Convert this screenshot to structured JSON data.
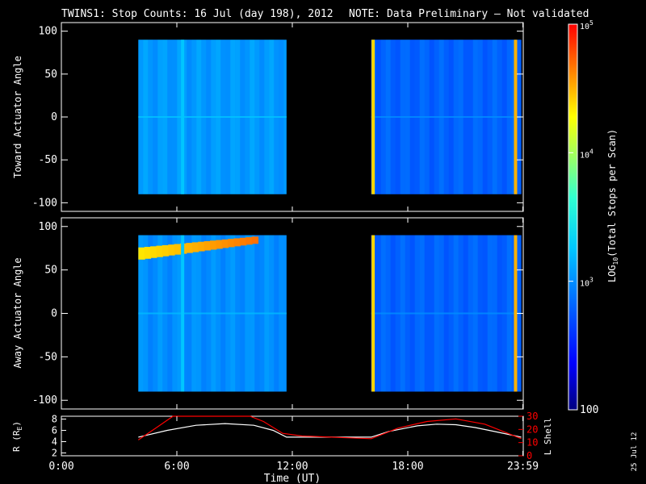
{
  "title": {
    "main": "TWINS1: Stop Counts: 16 Jul (day 198), 2012",
    "note": "NOTE: Data Preliminary – Not validated",
    "note_color": "#ff0000"
  },
  "side_date": "25 Jul 12",
  "chart_data": [
    {
      "type": "heatmap",
      "ylabel": "Toward Actuator Angle",
      "ylim": [
        -110,
        110
      ],
      "yticks": [
        100,
        50,
        0,
        -50,
        -100
      ],
      "xlim": [
        0,
        24
      ],
      "data_blocks": [
        {
          "x_start": 4.0,
          "x_end": 11.7,
          "y_start": -90,
          "y_end": 90,
          "log10_level": 3.05
        },
        {
          "x_start": 16.1,
          "x_end": 23.9,
          "y_start": -90,
          "y_end": 90,
          "log10_level": 2.8
        }
      ],
      "features": [
        {
          "x": 6.3,
          "kind": "vertical stripe",
          "log10_level": 3.25
        },
        {
          "x": 16.2,
          "kind": "vertical stripe",
          "log10_level": 4.4
        },
        {
          "x": 23.6,
          "kind": "vertical stripe",
          "log10_level": 4.5
        }
      ]
    },
    {
      "type": "heatmap",
      "ylabel": "Away Actuator Angle",
      "ylim": [
        -110,
        110
      ],
      "yticks": [
        100,
        50,
        0,
        -50,
        -100
      ],
      "xlim": [
        0,
        24
      ],
      "data_blocks": [
        {
          "x_start": 4.0,
          "x_end": 11.7,
          "y_start": -90,
          "y_end": 90,
          "log10_level": 3.0
        },
        {
          "x_start": 16.1,
          "x_end": 23.9,
          "y_start": -90,
          "y_end": 90,
          "log10_level": 2.8
        }
      ],
      "features": [
        {
          "kind": "enhancement band",
          "x_start": 4.0,
          "x_end": 10.2,
          "y_start": 62,
          "y_end": 85,
          "log10_level": 4.6
        },
        {
          "x": 6.3,
          "kind": "vertical stripe",
          "log10_level": 3.25
        },
        {
          "x": 16.2,
          "kind": "vertical stripe",
          "log10_level": 4.4
        },
        {
          "x": 23.6,
          "kind": "vertical stripe",
          "log10_level": 4.5
        }
      ]
    },
    {
      "type": "line",
      "ylabel": "R (R",
      "ylabel_sub": "E",
      "ylabel_end": ")",
      "ylabel2": "L Shell",
      "ylim": [
        1.5,
        8.5
      ],
      "yticks": [
        8,
        6,
        4,
        2
      ],
      "ylim2": [
        0,
        30
      ],
      "yticks2": [
        30,
        20,
        10,
        0
      ],
      "x_ticks": [
        "0:00",
        "6:00",
        "12:00",
        "18:00",
        "23:59"
      ],
      "x_tick_values": [
        0,
        6,
        12,
        18,
        23.98
      ],
      "xlabel": "Time (UT)",
      "series": [
        {
          "color": "#ffffff",
          "axis": "left",
          "x": [
            4.0,
            5.5,
            7.0,
            8.5,
            10.0,
            11.0,
            11.7,
            12.5,
            14.0,
            16.1,
            17.0,
            18.5,
            19.5,
            20.5,
            21.5,
            22.5,
            23.9
          ],
          "y": [
            4.8,
            6.0,
            6.9,
            7.2,
            6.9,
            6.0,
            4.8,
            4.8,
            4.8,
            4.8,
            5.8,
            6.8,
            7.1,
            7.0,
            6.5,
            5.8,
            4.8
          ]
        },
        {
          "color": "#ff0000",
          "axis": "right",
          "x": [
            4.0,
            5.0,
            5.8,
            9.8,
            10.5,
            11.5,
            12.5,
            16.1,
            17.5,
            19.0,
            20.5,
            22.0,
            23.9
          ],
          "y": [
            12,
            22,
            33,
            33,
            26,
            17,
            15,
            13,
            21,
            26,
            28,
            24,
            13
          ]
        }
      ]
    }
  ],
  "colorbar": {
    "label": "LOG",
    "label_sub": "10",
    "label_end": "(Total Stops per Scan)",
    "tick_mantissa": "10",
    "tick_exponents": [
      "5",
      "4",
      "3"
    ],
    "bottom_label": "100",
    "range_log10": [
      2,
      5
    ],
    "tick_values_log10": [
      5,
      4,
      3,
      2
    ]
  }
}
